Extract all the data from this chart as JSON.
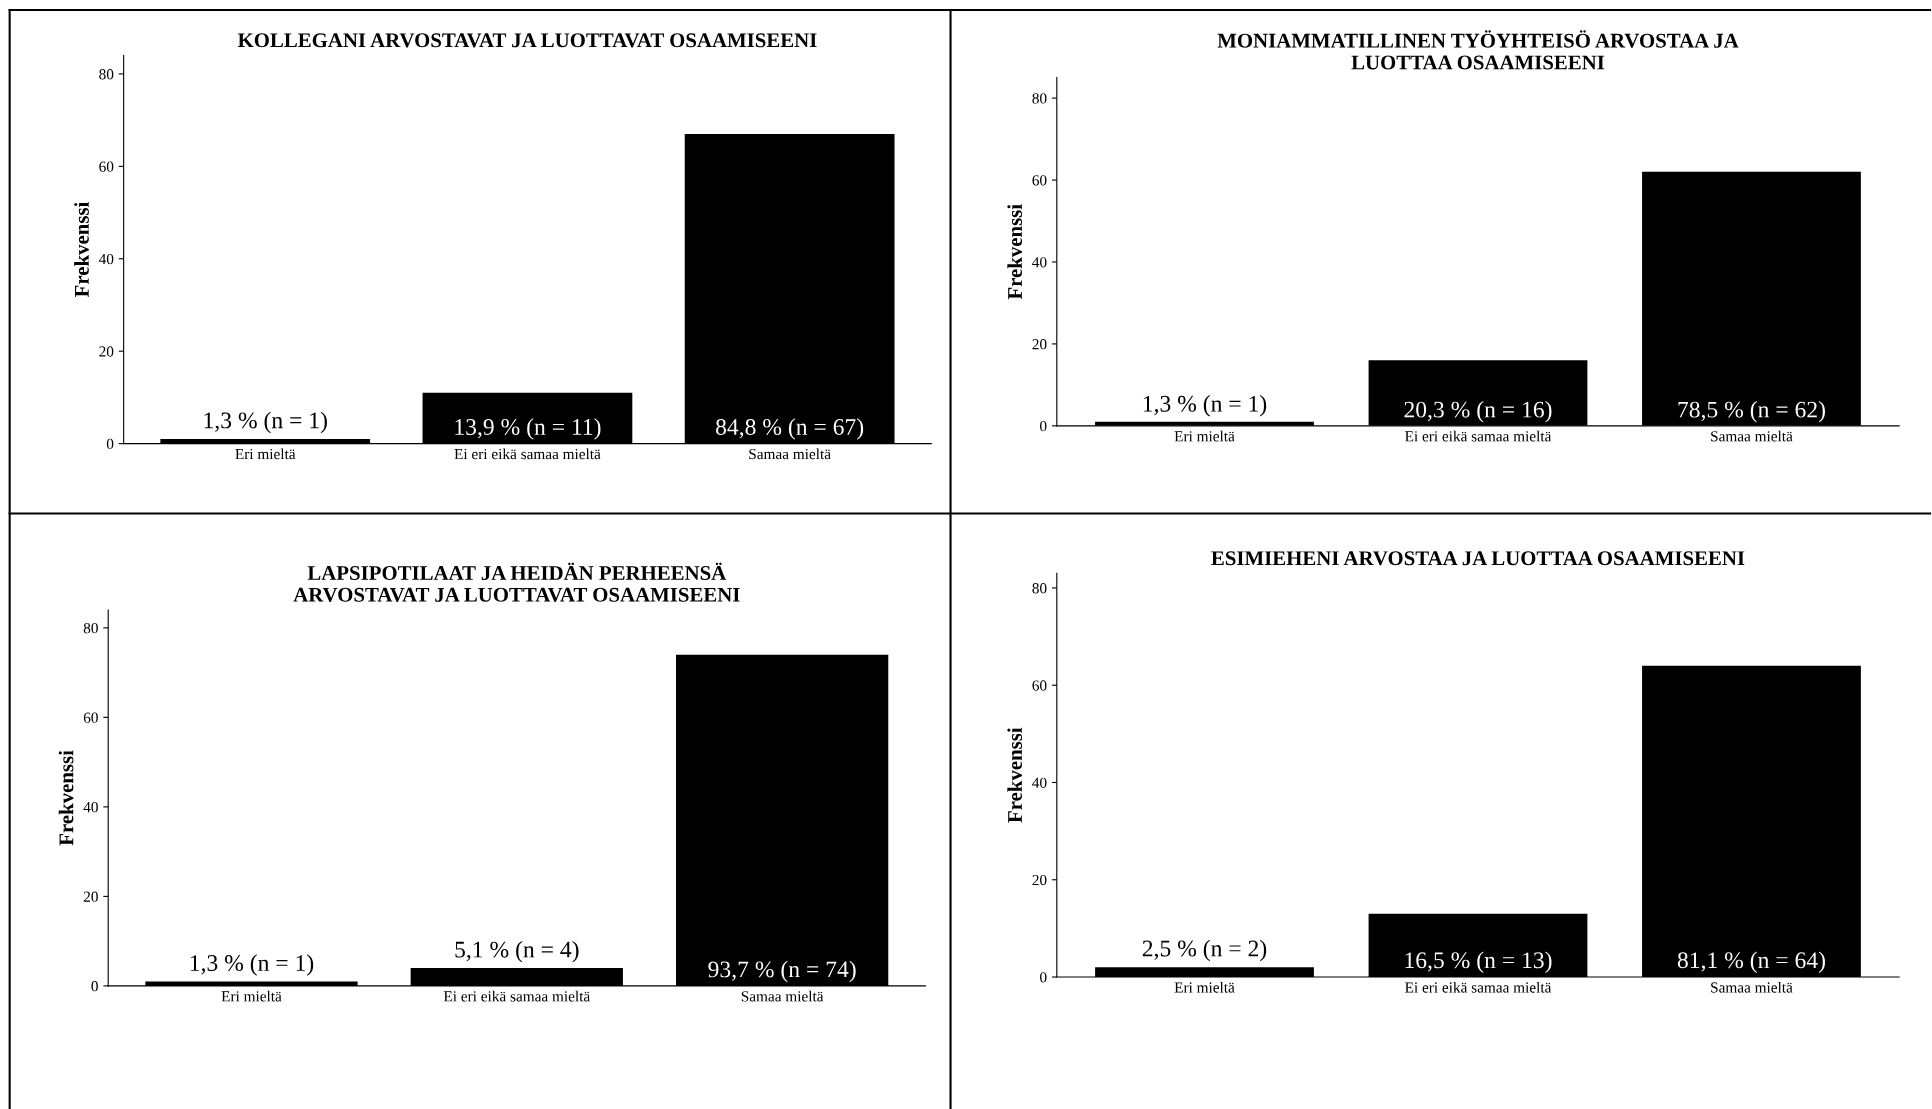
{
  "chart_data": [
    {
      "type": "bar",
      "title": "KOLLEGANI ARVOSTAVAT JA LUOTTAVAT OSAAMISEENI",
      "ylabel": "Frekvenssi",
      "categories": [
        "Eri mieltä",
        "Ei eri eikä samaa mieltä",
        "Samaa mieltä"
      ],
      "values": [
        1,
        11,
        67
      ],
      "value_labels": [
        "1,3 % (n = 1)",
        "13,9 % (n = 11)",
        "84,8 % (n = 67)"
      ],
      "color": "#000000",
      "ylim": [
        0,
        84
      ],
      "yticks": [
        0,
        20,
        40,
        60,
        80
      ],
      "grid": false
    },
    {
      "type": "bar",
      "title": "MONIAMMATILLINEN TYÖYHTEISÖ ARVOSTAA JA\nLUOTTAA OSAAMISEENI",
      "ylabel": "Frekvenssi",
      "categories": [
        "Eri mieltä",
        "Ei eri eikä samaa mieltä",
        "Samaa mieltä"
      ],
      "values": [
        1,
        16,
        62
      ],
      "value_labels": [
        "1,3 % (n = 1)",
        "20,3 % (n = 16)",
        "78,5 % (n = 62)"
      ],
      "color": "#000000",
      "ylim": [
        0,
        85
      ],
      "yticks": [
        0,
        20,
        40,
        60,
        80
      ],
      "grid": false
    },
    {
      "type": "bar",
      "title": "LAPSIPOTILAAT JA HEIDÄN PERHEENSÄ\nARVOSTAVAT JA LUOTTAVAT OSAAMISEENI",
      "ylabel": "Frekvenssi",
      "categories": [
        "Eri mieltä",
        "Ei eri eikä samaa mieltä",
        "Samaa mieltä"
      ],
      "values": [
        1,
        4,
        74
      ],
      "value_labels": [
        "1,3 % (n = 1)",
        "5,1 % (n = 4)",
        "93,7 % (n = 74)"
      ],
      "color": "#000000",
      "ylim": [
        0,
        84
      ],
      "yticks": [
        0,
        20,
        40,
        60,
        80
      ],
      "grid": false
    },
    {
      "type": "bar",
      "title": "ESIMIEHENI ARVOSTAA JA LUOTTAA OSAAMISEENI",
      "ylabel": "Frekvenssi",
      "categories": [
        "Eri mieltä",
        "Ei eri eikä samaa mieltä",
        "Samaa mieltä"
      ],
      "values": [
        2,
        13,
        64
      ],
      "value_labels": [
        "2,5 % (n = 2)",
        "16,5 % (n = 13)",
        "81,1 % (n = 64)"
      ],
      "color": "#000000",
      "ylim": [
        0,
        83
      ],
      "yticks": [
        0,
        20,
        40,
        60,
        80
      ],
      "grid": false
    }
  ]
}
